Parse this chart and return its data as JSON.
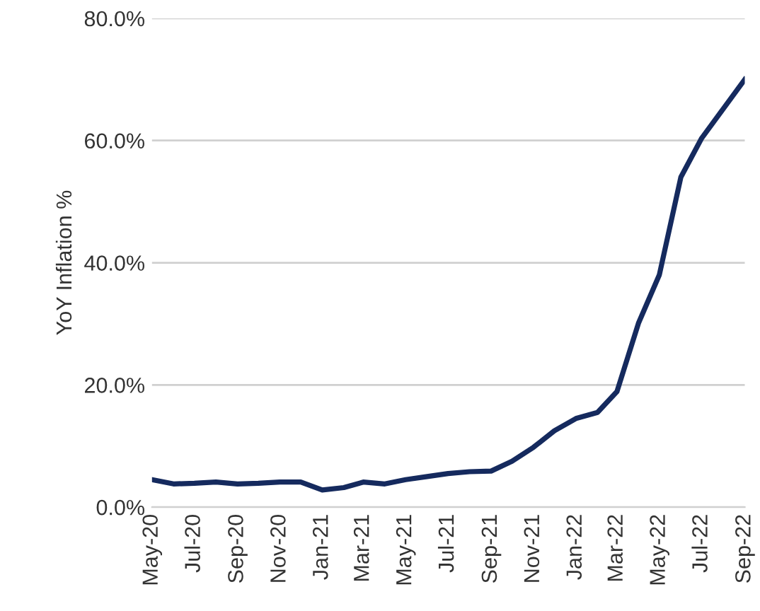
{
  "chart_data": {
    "type": "line",
    "ylabel": "YoY Inflation %",
    "x": [
      "2020-05",
      "2020-06",
      "2020-07",
      "2020-08",
      "2020-09",
      "2020-10",
      "2020-11",
      "2020-12",
      "2021-01",
      "2021-02",
      "2021-03",
      "2021-04",
      "2021-05",
      "2021-06",
      "2021-07",
      "2021-08",
      "2021-09",
      "2021-10",
      "2021-11",
      "2021-12",
      "2022-01",
      "2022-02",
      "2022-03",
      "2022-04",
      "2022-05",
      "2022-06",
      "2022-07",
      "2022-08",
      "2022-09"
    ],
    "series": [
      {
        "color": "#152a5e",
        "values": [
          4.5,
          3.8,
          3.9,
          4.1,
          3.8,
          3.9,
          4.1,
          4.1,
          2.8,
          3.2,
          4.1,
          3.8,
          4.5,
          5.0,
          5.5,
          5.8,
          5.9,
          7.5,
          9.8,
          12.5,
          14.5,
          15.5,
          18.9,
          30.1,
          38.0,
          54.0,
          60.4,
          65.2,
          70.0
        ]
      }
    ],
    "xlim": [
      "2020-05",
      "2022-09"
    ],
    "xticks": [
      {
        "value": "2020-05",
        "label": "May-20"
      },
      {
        "value": "2020-07",
        "label": "Jul-20"
      },
      {
        "value": "2020-09",
        "label": "Sep-20"
      },
      {
        "value": "2020-11",
        "label": "Nov-20"
      },
      {
        "value": "2021-01",
        "label": "Jan-21"
      },
      {
        "value": "2021-03",
        "label": "Mar-21"
      },
      {
        "value": "2021-05",
        "label": "May-21"
      },
      {
        "value": "2021-07",
        "label": "Jul-21"
      },
      {
        "value": "2021-09",
        "label": "Sep-21"
      },
      {
        "value": "2021-11",
        "label": "Nov-21"
      },
      {
        "value": "2022-01",
        "label": "Jan-22"
      },
      {
        "value": "2022-03",
        "label": "Mar-22"
      },
      {
        "value": "2022-05",
        "label": "May-22"
      },
      {
        "value": "2022-07",
        "label": "Jul-22"
      },
      {
        "value": "2022-09",
        "label": "Sep-22"
      }
    ],
    "ylim": [
      0,
      80
    ],
    "yticks": [
      {
        "value": 0,
        "label": "0.0%"
      },
      {
        "value": 20,
        "label": "20.0%"
      },
      {
        "value": 40,
        "label": "40.0%"
      },
      {
        "value": 60,
        "label": "60.0%"
      },
      {
        "value": 80,
        "label": "80.0%"
      }
    ],
    "grid": "y",
    "legend": false,
    "marker": "none",
    "line_style": "solid"
  }
}
